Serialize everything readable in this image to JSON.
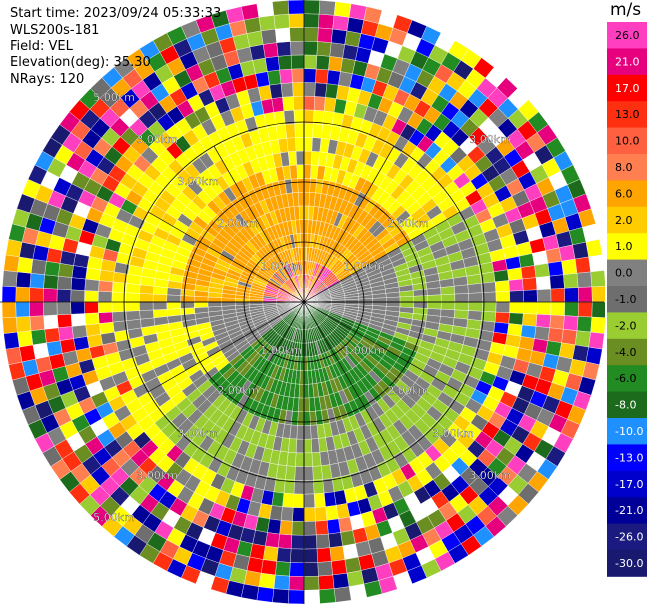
{
  "header": {
    "start_time": "Start time: 2023/09/24 05:33:33",
    "instrument": "WLS200s-181",
    "field": "Field: VEL",
    "elevation": "Elevation(deg): 35.30",
    "nrays": "NRays: 120"
  },
  "chart_data": {
    "type": "heatmap",
    "projection": "polar-ppi",
    "n_rays": 120,
    "n_range_gates": 22,
    "range_unit": "km",
    "range_ring_labels": [
      "1.00km",
      "2.00km",
      "3.00km",
      "5.00km"
    ],
    "colorbar": {
      "unit": "m/s",
      "tick_labels": [
        "26.0",
        "21.0",
        "17.0",
        "13.0",
        "10.0",
        "8.0",
        "6.0",
        "2.0",
        "1.0",
        "0.0",
        "-1.0",
        "-2.0",
        "-4.0",
        "-6.0",
        "-8.0",
        "-10.0",
        "-13.0",
        "-17.0",
        "-21.0",
        "-26.0",
        "-30.0"
      ],
      "colors": [
        "#ff3fbf",
        "#e6007e",
        "#ff0000",
        "#ff3010",
        "#ff6040",
        "#ff7f50",
        "#ffa500",
        "#ffcc00",
        "#ffff00",
        "#808080",
        "#6e6e6e",
        "#9acd32",
        "#6b8e23",
        "#228b22",
        "#1c6b1c",
        "#1e90ff",
        "#0000ff",
        "#0000cd",
        "#000099",
        "#1a1a80",
        "#191970"
      ]
    },
    "velocity_pattern": {
      "near_field_max_ms": 2.0,
      "inbound_sector_deg": [
        100,
        230
      ],
      "outbound_sector_deg": [
        280,
        60
      ],
      "noise_beyond_km": 4.0
    }
  }
}
